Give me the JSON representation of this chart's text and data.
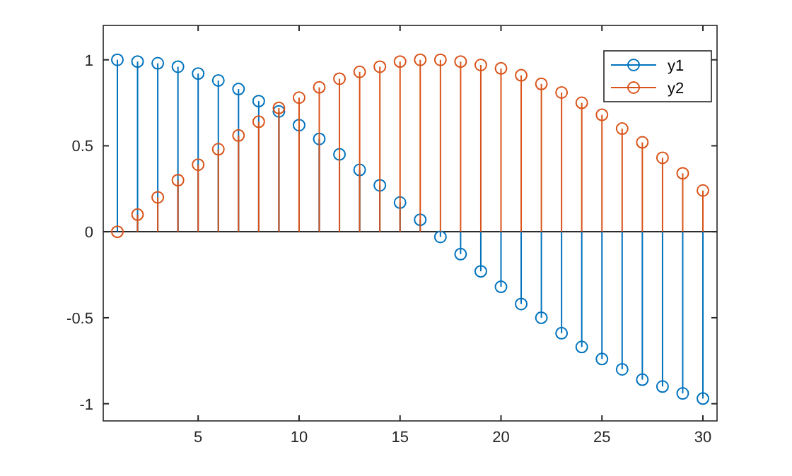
{
  "chart_data": {
    "type": "lollipop",
    "x": [
      1,
      2,
      3,
      4,
      5,
      6,
      7,
      8,
      9,
      10,
      11,
      12,
      13,
      14,
      15,
      16,
      17,
      18,
      19,
      20,
      21,
      22,
      23,
      24,
      25,
      26,
      27,
      28,
      29,
      30
    ],
    "series": [
      {
        "name": "y1",
        "color": "#0072bd",
        "values": [
          1.0,
          0.99,
          0.98,
          0.96,
          0.92,
          0.88,
          0.83,
          0.76,
          0.7,
          0.62,
          0.54,
          0.45,
          0.36,
          0.27,
          0.17,
          0.07,
          -0.03,
          -0.13,
          -0.23,
          -0.32,
          -0.42,
          -0.5,
          -0.59,
          -0.67,
          -0.74,
          -0.8,
          -0.86,
          -0.9,
          -0.94,
          -0.97
        ]
      },
      {
        "name": "y2",
        "color": "#d95319",
        "values": [
          0,
          0.1,
          0.2,
          0.3,
          0.39,
          0.48,
          0.56,
          0.64,
          0.72,
          0.78,
          0.84,
          0.89,
          0.93,
          0.96,
          0.99,
          1.0,
          1.0,
          0.99,
          0.97,
          0.95,
          0.91,
          0.86,
          0.81,
          0.75,
          0.68,
          0.6,
          0.52,
          0.43,
          0.34,
          0.24
        ]
      }
    ],
    "xlim": [
      0.3,
      30.7
    ],
    "xticks": [
      5,
      10,
      15,
      20,
      25,
      30
    ],
    "ylim": [
      -1.1,
      1.2
    ],
    "yticks": [
      -1,
      -0.5,
      0,
      0.5,
      1
    ],
    "ref_lines": [
      {
        "axis": "y",
        "value": 0,
        "color": "#000000"
      }
    ],
    "marker": "circle",
    "grid": false,
    "legend": "top right"
  }
}
